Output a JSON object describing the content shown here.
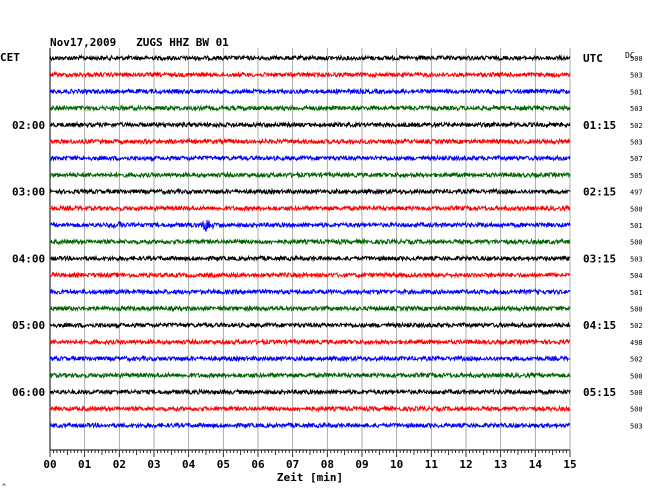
{
  "chart_data": {
    "type": "line",
    "title": "Nov17,2009   ZUGS HHZ BW 01",
    "left_axis_label": "CET",
    "right_axis_label": "UTC",
    "dc_label": "DC",
    "xlabel": "Zeit [min]",
    "xlim": [
      0,
      15
    ],
    "x_ticks": [
      "00",
      "01",
      "02",
      "03",
      "04",
      "05",
      "06",
      "07",
      "08",
      "09",
      "10",
      "11",
      "12",
      "13",
      "14",
      "15"
    ],
    "left_time_labels": [
      {
        "row": 4,
        "label": "02:00"
      },
      {
        "row": 8,
        "label": "03:00"
      },
      {
        "row": 12,
        "label": "04:00"
      },
      {
        "row": 16,
        "label": "05:00"
      },
      {
        "row": 20,
        "label": "06:00"
      }
    ],
    "right_time_labels": [
      {
        "row": 0,
        "label": "UTC"
      },
      {
        "row": 4,
        "label": "01:15"
      },
      {
        "row": 8,
        "label": "02:15"
      },
      {
        "row": 12,
        "label": "03:15"
      },
      {
        "row": 16,
        "label": "04:15"
      },
      {
        "row": 20,
        "label": "05:15"
      }
    ],
    "trace_colors": [
      "#000000",
      "#ff0000",
      "#0000ff",
      "#006400"
    ],
    "dc_offsets": [
      500,
      503,
      501,
      503,
      502,
      503,
      507,
      505,
      497,
      500,
      501,
      500,
      503,
      504,
      501,
      500,
      502,
      498,
      502,
      500,
      500,
      500,
      503
    ],
    "events": [
      {
        "row": 10,
        "minute": 2.05,
        "strength": 0.5
      },
      {
        "row": 10,
        "minute": 4.5,
        "strength": 1.0
      }
    ],
    "corner_mark": "^"
  }
}
